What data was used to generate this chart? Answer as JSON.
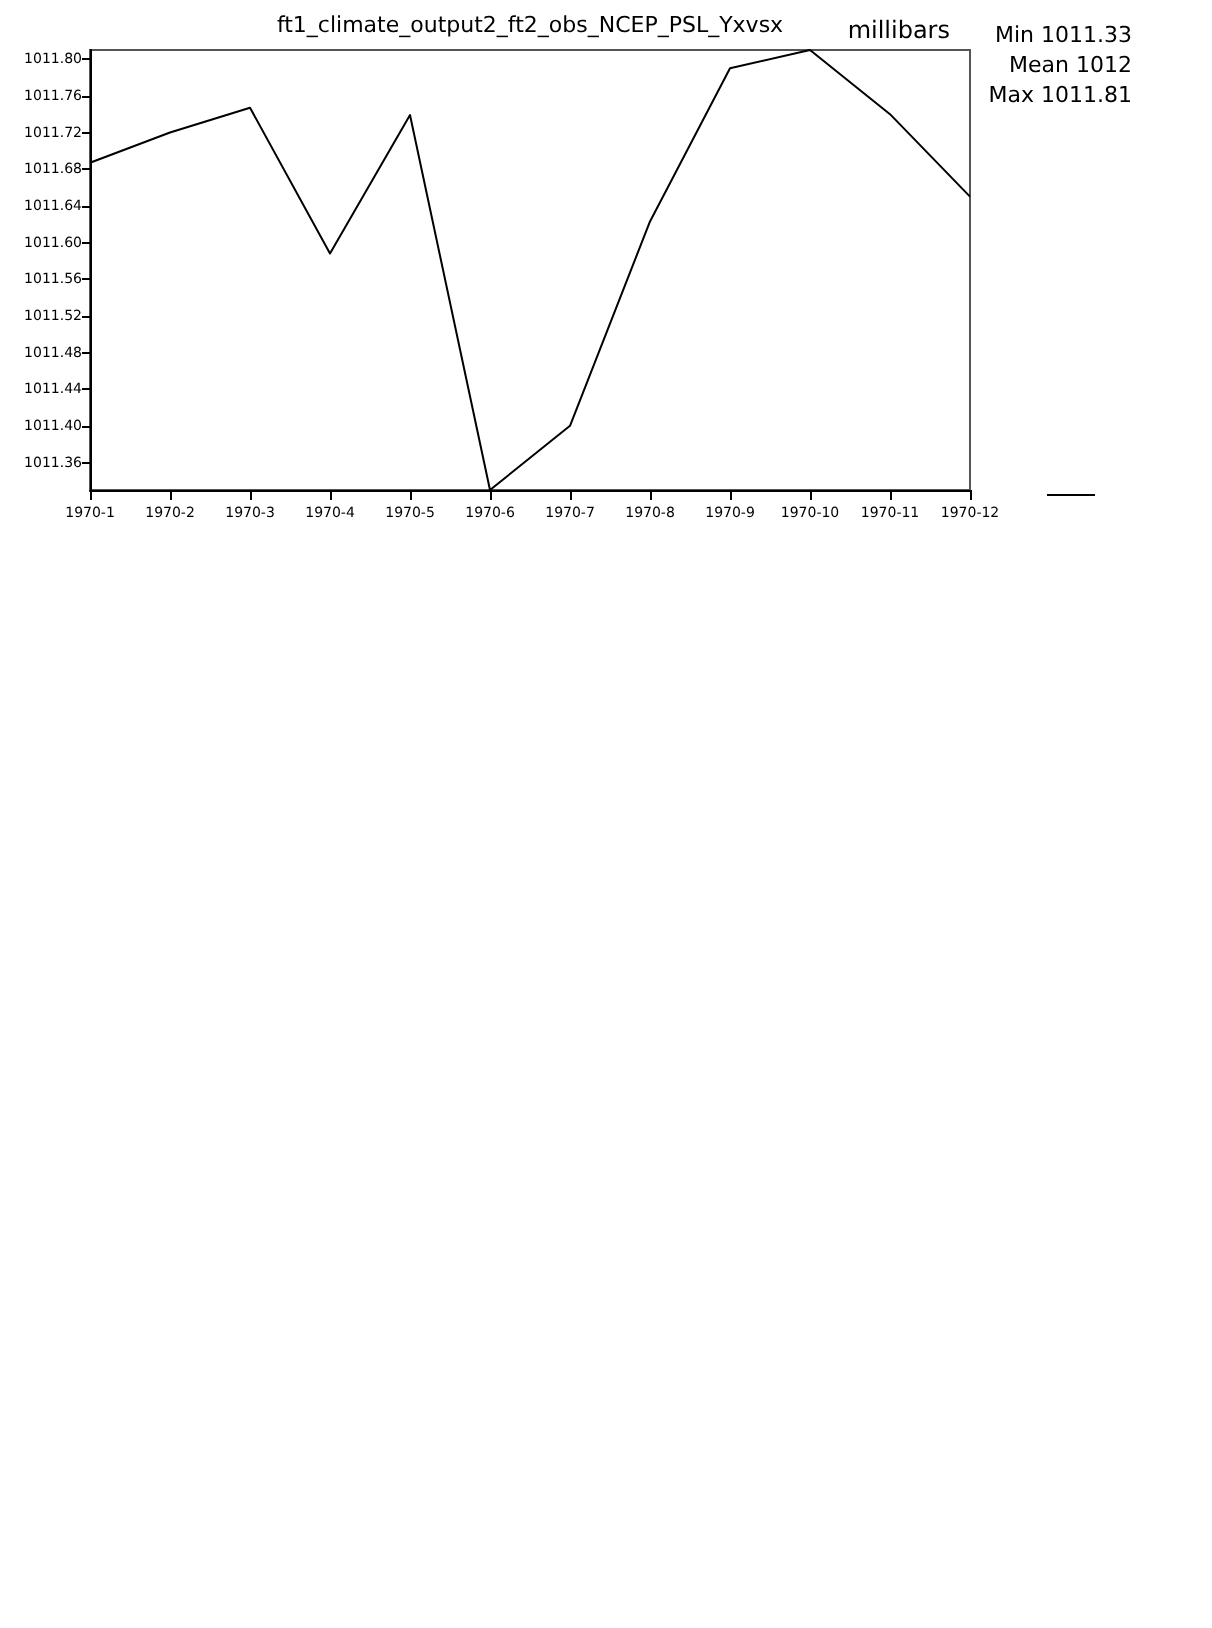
{
  "chart_data": {
    "type": "line",
    "title": "ft1_climate_output2_ft2_obs_NCEP_PSL_Yxvsx",
    "ylabel": "millibars",
    "annotations": [
      "Min 1011.33",
      "Mean 1012",
      "Max 1011.81"
    ],
    "categories": [
      "1970-1",
      "1970-2",
      "1970-3",
      "1970-4",
      "1970-5",
      "1970-6",
      "1970-7",
      "1970-8",
      "1970-9",
      "1970-10",
      "1970-11",
      "1970-12"
    ],
    "series": [
      {
        "color": "#000000",
        "values": [
          1011.687,
          1011.72,
          1011.747,
          1011.588,
          1011.739,
          1011.33,
          1011.4,
          1011.623,
          1011.79,
          1011.81,
          1011.74,
          1011.65
        ]
      }
    ],
    "ylim": [
      1011.33,
      1011.81
    ],
    "yticks": [
      {
        "value": 1011.36,
        "label": "1011.36"
      },
      {
        "value": 1011.4,
        "label": "1011.40"
      },
      {
        "value": 1011.44,
        "label": "1011.44"
      },
      {
        "value": 1011.48,
        "label": "1011.48"
      },
      {
        "value": 1011.52,
        "label": "1011.52"
      },
      {
        "value": 1011.56,
        "label": "1011.56"
      },
      {
        "value": 1011.6,
        "label": "1011.60"
      },
      {
        "value": 1011.64,
        "label": "1011.64"
      },
      {
        "value": 1011.68,
        "label": "1011.68"
      },
      {
        "value": 1011.72,
        "label": "1011.72"
      },
      {
        "value": 1011.76,
        "label": "1011.76"
      },
      {
        "value": 1011.8,
        "label": "1011.80"
      }
    ],
    "grid": false,
    "marker": "none",
    "line_style": "solid"
  }
}
